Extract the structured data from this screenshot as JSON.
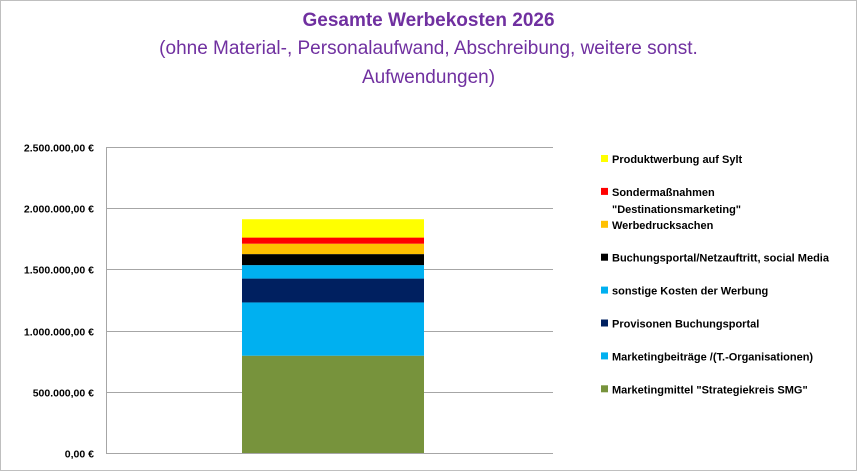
{
  "chart_data": {
    "type": "bar",
    "stacked": true,
    "title": "Gesamte Werbekosten 2026",
    "subtitle": "(ohne Material-, Personalaufwand, Abschreibung, weitere sonst. Aufwendungen)",
    "subtitle_lines": [
      "(ohne Material-, Personalaufwand, Abschreibung, weitere sonst.",
      "Aufwendungen)"
    ],
    "categories": [
      ""
    ],
    "ylim": [
      0,
      2500000
    ],
    "y_ticks": [
      0,
      500000,
      1000000,
      1500000,
      2000000,
      2500000
    ],
    "y_tick_labels": [
      "0,00 €",
      "500.000,00 €",
      "1.000.000,00 €",
      "1.500.000,00 €",
      "2.000.000,00 €",
      "2.500.000,00 €"
    ],
    "grid": true,
    "legend_position": "right",
    "series": [
      {
        "name": "Marketingmittel \"Strategiekreis SMG\"",
        "values": [
          795000
        ],
        "color": "#77933c"
      },
      {
        "name": "Marketingbeiträge /(T.-Organisationen)",
        "values": [
          435000
        ],
        "color": "#00b0f0"
      },
      {
        "name": "Provisonen Buchungsportal",
        "values": [
          195000
        ],
        "color": "#002060"
      },
      {
        "name": "sonstige Kosten der Werbung",
        "values": [
          110000
        ],
        "color": "#00b0f0"
      },
      {
        "name": "Buchungsportal/Netzauftritt, social Media",
        "values": [
          90000
        ],
        "color": "#000000"
      },
      {
        "name": "Werbedrucksachen",
        "values": [
          85000
        ],
        "color": "#ffc000"
      },
      {
        "name": "Sondermaßnahmen \"Destinationsmarketing\"",
        "values": [
          50000
        ],
        "color": "#ff0000"
      },
      {
        "name": "Produktwerbung auf Sylt",
        "values": [
          150000
        ],
        "color": "#ffff00"
      }
    ],
    "legend_items": [
      {
        "lines": [
          "Produktwerbung auf Sylt"
        ],
        "color": "#ffff00"
      },
      {
        "lines": [
          "Sondermaßnahmen",
          "\"Destinationsmarketing\""
        ],
        "color": "#ff0000"
      },
      {
        "lines": [
          "Werbedrucksachen"
        ],
        "color": "#ffc000"
      },
      {
        "lines": [
          "Buchungsportal/Netzauftritt, social Media"
        ],
        "color": "#000000"
      },
      {
        "lines": [
          "sonstige Kosten der Werbung"
        ],
        "color": "#00b0f0"
      },
      {
        "lines": [
          "Provisonen Buchungsportal"
        ],
        "color": "#002060"
      },
      {
        "lines": [
          "Marketingbeiträge /(T.-Organisationen)"
        ],
        "color": "#00b0f0"
      },
      {
        "lines": [
          "Marketingmittel \"Strategiekreis SMG\""
        ],
        "color": "#77933c"
      }
    ]
  }
}
